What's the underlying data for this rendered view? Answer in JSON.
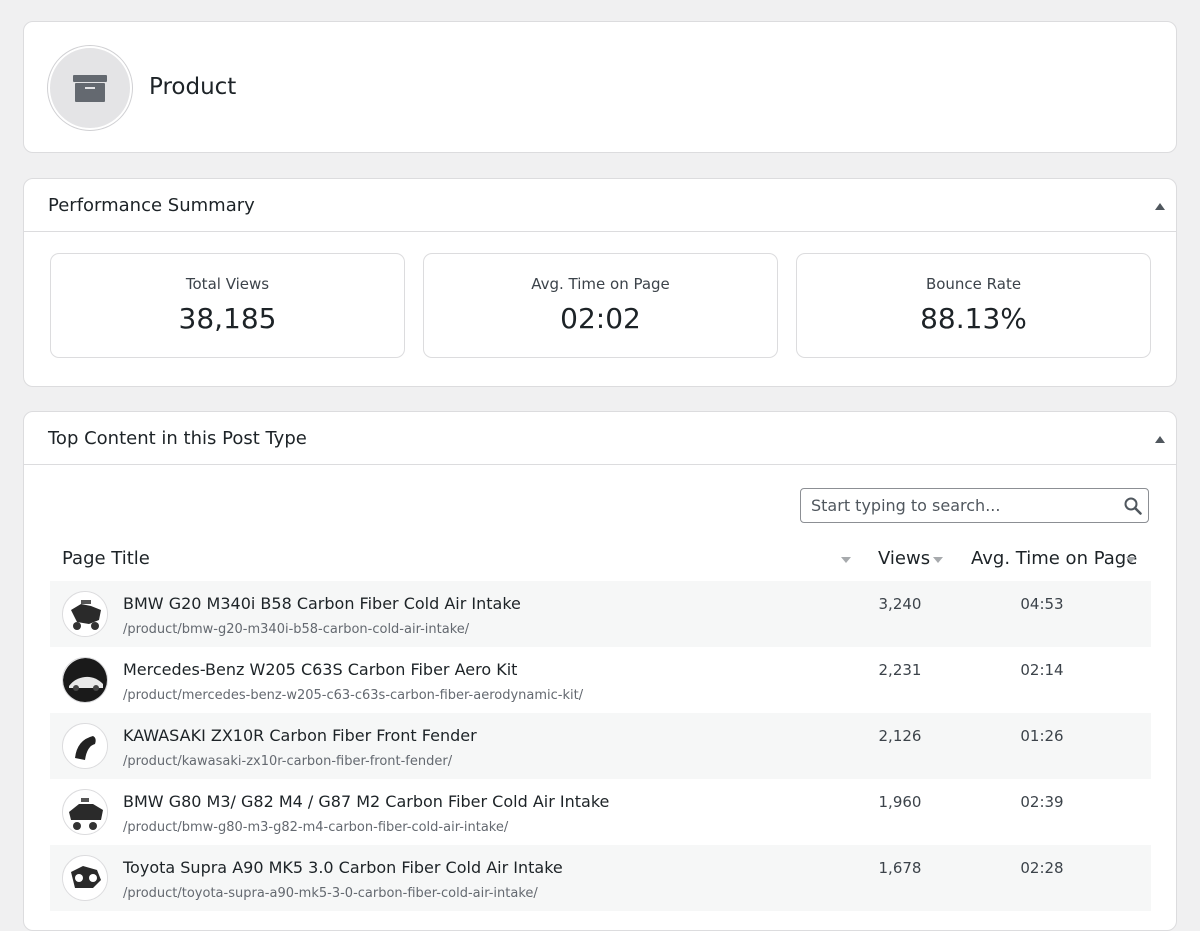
{
  "header": {
    "title": "Product",
    "icon": "archive-icon"
  },
  "summary": {
    "title": "Performance Summary",
    "metrics": [
      {
        "label": "Total Views",
        "value": "38,185"
      },
      {
        "label": "Avg. Time on Page",
        "value": "02:02"
      },
      {
        "label": "Bounce Rate",
        "value": "88.13%"
      }
    ]
  },
  "top_content": {
    "title": "Top Content in this Post Type",
    "search": {
      "placeholder": "Start typing to search...",
      "value": ""
    },
    "columns": {
      "title": "Page Title",
      "views": "Views",
      "time": "Avg. Time on Page"
    },
    "rows": [
      {
        "title": "BMW G20 M340i B58 Carbon Fiber Cold Air Intake",
        "url": "/product/bmw-g20-m340i-b58-carbon-cold-air-intake/",
        "views": "3,240",
        "time": "04:53"
      },
      {
        "title": "Mercedes-Benz W205 C63S Carbon Fiber Aero Kit",
        "url": "/product/mercedes-benz-w205-c63-c63s-carbon-fiber-aerodynamic-kit/",
        "views": "2,231",
        "time": "02:14"
      },
      {
        "title": "KAWASAKI ZX10R Carbon Fiber Front Fender",
        "url": "/product/kawasaki-zx10r-carbon-fiber-front-fender/",
        "views": "2,126",
        "time": "01:26"
      },
      {
        "title": "BMW G80 M3/ G82 M4 / G87 M2 Carbon Fiber Cold Air Intake",
        "url": "/product/bmw-g80-m3-g82-m4-carbon-fiber-cold-air-intake/",
        "views": "1,960",
        "time": "02:39"
      },
      {
        "title": "Toyota Supra A90 MK5 3.0 Carbon Fiber Cold Air Intake",
        "url": "/product/toyota-supra-a90-mk5-3-0-carbon-fiber-cold-air-intake/",
        "views": "1,678",
        "time": "02:28"
      }
    ]
  }
}
